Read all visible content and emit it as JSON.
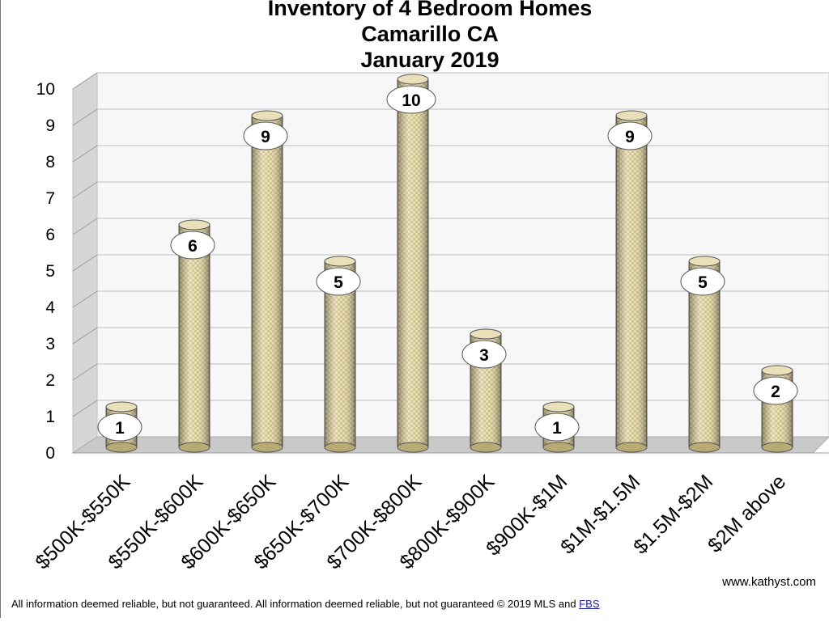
{
  "chart_data": {
    "type": "bar",
    "title": [
      "Inventory of 4 Bedroom Homes",
      "Camarillo CA",
      "January 2019"
    ],
    "categories": [
      "$500K-$550K",
      "$550K-$600K",
      "$600K-$650K",
      "$650K-$700K",
      "$700K-$800K",
      "$800K-$900K",
      "$900K-$1M",
      "$1M-$1.5M",
      "$1.5M-$2M",
      "$2M above"
    ],
    "values": [
      1,
      6,
      9,
      5,
      10,
      3,
      1,
      9,
      5,
      2
    ],
    "ylim": [
      0,
      10
    ],
    "yticks": [
      0,
      1,
      2,
      3,
      4,
      5,
      6,
      7,
      8,
      9,
      10
    ],
    "grid": true,
    "legend": "none",
    "bar_style": "3d-cylinder",
    "bar_color": "#d9cc9a",
    "data_labels": true
  },
  "watermark": {
    "site": "www.kathyst.com"
  },
  "footer": {
    "text": "All information deemed reliable, but not guaranteed. All information deemed reliable, but not guaranteed © 2019 MLS and ",
    "link": "FBS"
  }
}
